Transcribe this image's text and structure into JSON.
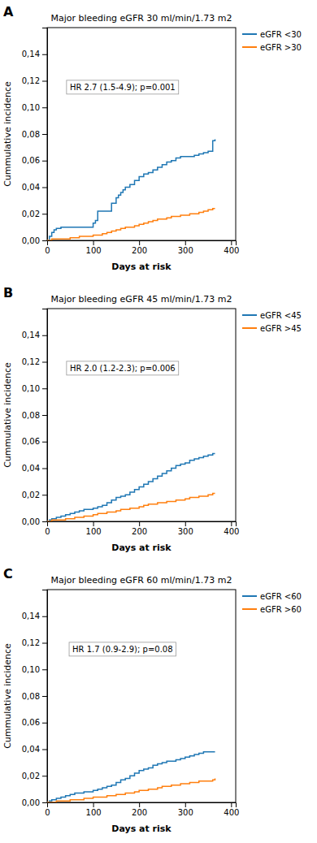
{
  "chart_data": [
    {
      "type": "step",
      "panel_label": "A",
      "title": "Major bleeding eGFR 30 ml/min/1.73 m2",
      "annotation": "HR 2.7 (1.5-4.9); p=0.001",
      "xlabel": "Days at risk",
      "ylabel": "Cummulative incidence",
      "xlim": [
        0,
        410
      ],
      "xticks": [
        0,
        100,
        200,
        300,
        400
      ],
      "ylim": [
        0,
        0.16
      ],
      "yticks": [
        {
          "value": 0,
          "label": "0,00"
        },
        {
          "value": 0.02,
          "label": "0,02"
        },
        {
          "value": 0.04,
          "label": "0,04"
        },
        {
          "value": 0.06,
          "label": "0,06"
        },
        {
          "value": 0.08,
          "label": "0,08"
        },
        {
          "value": 0.1,
          "label": "0,10"
        },
        {
          "value": 0.12,
          "label": "0,12"
        },
        {
          "value": 0.14,
          "label": "0,14"
        }
      ],
      "grid": false,
      "legend": "right",
      "series": [
        {
          "name": "eGFR <30",
          "x": [
            0,
            5,
            10,
            15,
            20,
            30,
            40,
            50,
            60,
            70,
            80,
            90,
            100,
            105,
            110,
            120,
            130,
            140,
            150,
            155,
            160,
            165,
            170,
            180,
            190,
            200,
            210,
            220,
            230,
            240,
            250,
            260,
            270,
            280,
            290,
            300,
            310,
            320,
            330,
            340,
            350,
            360,
            365
          ],
          "values": [
            0,
            0.003,
            0.006,
            0.008,
            0.009,
            0.01,
            0.01,
            0.01,
            0.01,
            0.01,
            0.01,
            0.01,
            0.013,
            0.015,
            0.022,
            0.022,
            0.022,
            0.028,
            0.032,
            0.034,
            0.036,
            0.038,
            0.04,
            0.042,
            0.045,
            0.048,
            0.05,
            0.051,
            0.053,
            0.055,
            0.057,
            0.059,
            0.06,
            0.062,
            0.063,
            0.063,
            0.063,
            0.064,
            0.065,
            0.066,
            0.067,
            0.075,
            0.076
          ]
        },
        {
          "name": "eGFR >30",
          "x": [
            0,
            10,
            20,
            30,
            40,
            50,
            60,
            70,
            80,
            90,
            100,
            110,
            120,
            130,
            140,
            150,
            160,
            170,
            180,
            190,
            200,
            210,
            220,
            230,
            240,
            250,
            260,
            270,
            280,
            290,
            300,
            310,
            320,
            330,
            340,
            350,
            360,
            365
          ],
          "values": [
            0,
            0.001,
            0.001,
            0.001,
            0.001,
            0.002,
            0.002,
            0.003,
            0.003,
            0.003,
            0.004,
            0.004,
            0.005,
            0.006,
            0.007,
            0.008,
            0.009,
            0.01,
            0.01,
            0.011,
            0.012,
            0.013,
            0.014,
            0.015,
            0.016,
            0.016,
            0.017,
            0.018,
            0.018,
            0.019,
            0.019,
            0.02,
            0.02,
            0.021,
            0.022,
            0.023,
            0.024,
            0.024
          ]
        }
      ]
    },
    {
      "type": "step",
      "panel_label": "B",
      "title": "Major bleeding eGFR 45 ml/min/1.73 m2",
      "annotation": "HR 2.0 (1.2-2.3); p=0.006",
      "xlabel": "Days at risk",
      "ylabel": "Cummulative incidence",
      "xlim": [
        0,
        410
      ],
      "xticks": [
        0,
        100,
        200,
        300,
        400
      ],
      "ylim": [
        0,
        0.16
      ],
      "yticks": [
        {
          "value": 0,
          "label": "0,00"
        },
        {
          "value": 0.02,
          "label": "0,02"
        },
        {
          "value": 0.04,
          "label": "0,04"
        },
        {
          "value": 0.06,
          "label": "0,06"
        },
        {
          "value": 0.08,
          "label": "0,08"
        },
        {
          "value": 0.1,
          "label": "0,10"
        },
        {
          "value": 0.12,
          "label": "0,12"
        },
        {
          "value": 0.14,
          "label": "0,14"
        }
      ],
      "grid": false,
      "legend": "right",
      "series": [
        {
          "name": "eGFR <45",
          "x": [
            0,
            5,
            10,
            20,
            30,
            40,
            50,
            60,
            70,
            80,
            90,
            100,
            110,
            120,
            130,
            140,
            150,
            160,
            170,
            180,
            190,
            200,
            210,
            220,
            230,
            240,
            250,
            260,
            270,
            280,
            290,
            300,
            310,
            320,
            330,
            340,
            350,
            360,
            365
          ],
          "values": [
            0,
            0.001,
            0.002,
            0.003,
            0.004,
            0.005,
            0.006,
            0.007,
            0.008,
            0.009,
            0.009,
            0.01,
            0.011,
            0.012,
            0.014,
            0.016,
            0.018,
            0.019,
            0.02,
            0.022,
            0.024,
            0.026,
            0.028,
            0.03,
            0.032,
            0.034,
            0.036,
            0.038,
            0.04,
            0.042,
            0.043,
            0.044,
            0.046,
            0.047,
            0.048,
            0.049,
            0.05,
            0.051,
            0.051
          ]
        },
        {
          "name": "eGFR >45",
          "x": [
            0,
            10,
            20,
            30,
            40,
            50,
            60,
            70,
            80,
            90,
            100,
            110,
            120,
            130,
            140,
            150,
            160,
            170,
            180,
            190,
            200,
            210,
            220,
            230,
            240,
            250,
            260,
            270,
            280,
            290,
            300,
            310,
            320,
            330,
            340,
            350,
            360,
            365
          ],
          "values": [
            0,
            0.001,
            0.001,
            0.001,
            0.002,
            0.002,
            0.003,
            0.003,
            0.004,
            0.004,
            0.005,
            0.006,
            0.006,
            0.007,
            0.007,
            0.008,
            0.009,
            0.009,
            0.01,
            0.01,
            0.011,
            0.012,
            0.013,
            0.013,
            0.014,
            0.014,
            0.015,
            0.015,
            0.016,
            0.016,
            0.017,
            0.018,
            0.018,
            0.019,
            0.019,
            0.02,
            0.021,
            0.021
          ]
        }
      ]
    },
    {
      "type": "step",
      "panel_label": "C",
      "title": "Major bleeding eGFR 60 ml/min/1.73 m2",
      "annotation": "HR 1.7 (0.9-2.9); p=0.08",
      "xlabel": "Days at risk",
      "ylabel": "Cummulative incidence",
      "xlim": [
        0,
        410
      ],
      "xticks": [
        0,
        100,
        200,
        300,
        400
      ],
      "ylim": [
        0,
        0.16
      ],
      "yticks": [
        {
          "value": 0,
          "label": "0,00"
        },
        {
          "value": 0.02,
          "label": "0,02"
        },
        {
          "value": 0.04,
          "label": "0,04"
        },
        {
          "value": 0.06,
          "label": "0,06"
        },
        {
          "value": 0.08,
          "label": "0,08"
        },
        {
          "value": 0.1,
          "label": "0,10"
        },
        {
          "value": 0.12,
          "label": "0,12"
        },
        {
          "value": 0.14,
          "label": "0,14"
        }
      ],
      "grid": false,
      "legend": "right",
      "series": [
        {
          "name": "eGFR <60",
          "x": [
            0,
            5,
            10,
            20,
            30,
            40,
            50,
            60,
            70,
            80,
            90,
            100,
            110,
            120,
            130,
            140,
            150,
            160,
            170,
            180,
            190,
            200,
            210,
            220,
            230,
            240,
            250,
            260,
            270,
            280,
            290,
            300,
            310,
            320,
            330,
            340,
            350,
            360,
            365
          ],
          "values": [
            0,
            0.001,
            0.002,
            0.003,
            0.004,
            0.005,
            0.006,
            0.007,
            0.007,
            0.008,
            0.008,
            0.009,
            0.01,
            0.011,
            0.012,
            0.013,
            0.015,
            0.017,
            0.018,
            0.02,
            0.022,
            0.024,
            0.025,
            0.026,
            0.028,
            0.029,
            0.03,
            0.031,
            0.031,
            0.032,
            0.033,
            0.034,
            0.035,
            0.036,
            0.037,
            0.038,
            0.038,
            0.038,
            0.038
          ]
        },
        {
          "name": "eGFR >60",
          "x": [
            0,
            10,
            20,
            30,
            40,
            50,
            60,
            70,
            80,
            90,
            100,
            110,
            120,
            130,
            140,
            150,
            160,
            170,
            180,
            190,
            200,
            210,
            220,
            230,
            240,
            250,
            260,
            270,
            280,
            290,
            300,
            310,
            320,
            330,
            340,
            350,
            360,
            365
          ],
          "values": [
            0,
            0.0,
            0.001,
            0.001,
            0.001,
            0.002,
            0.002,
            0.002,
            0.003,
            0.003,
            0.004,
            0.004,
            0.004,
            0.005,
            0.005,
            0.006,
            0.006,
            0.007,
            0.007,
            0.008,
            0.009,
            0.009,
            0.01,
            0.01,
            0.011,
            0.012,
            0.012,
            0.013,
            0.013,
            0.014,
            0.014,
            0.015,
            0.015,
            0.016,
            0.016,
            0.016,
            0.017,
            0.018
          ]
        }
      ]
    }
  ]
}
